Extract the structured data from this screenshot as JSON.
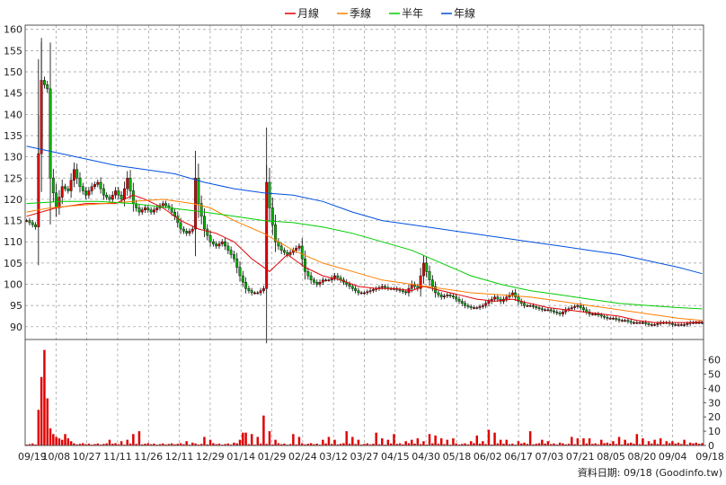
{
  "chart_data": {
    "type": "candlestick",
    "legend": {
      "placement": "top-center",
      "items": [
        {
          "label": "月線",
          "color": "#e00000"
        },
        {
          "label": "季線",
          "color": "#ff7f00"
        },
        {
          "label": "半年",
          "color": "#00cc00"
        },
        {
          "label": "年線",
          "color": "#0050e0"
        }
      ]
    },
    "price_axis": {
      "min": 87,
      "max": 161,
      "ticks": [
        90,
        95,
        100,
        105,
        110,
        115,
        120,
        125,
        130,
        135,
        140,
        145,
        150,
        155,
        160
      ]
    },
    "volume_axis": {
      "min": 0,
      "max": 68,
      "ticks": [
        0,
        10,
        20,
        30,
        40,
        50,
        60
      ]
    },
    "x_ticks": [
      "09/19",
      "10/08",
      "10/27",
      "11/11",
      "11/26",
      "12/11",
      "12/29",
      "01/14",
      "01/29",
      "02/24",
      "03/12",
      "03/27",
      "04/15",
      "04/30",
      "05/18",
      "06/02",
      "06/17",
      "07/03",
      "07/21",
      "08/05",
      "08/20",
      "09/04",
      "09/18"
    ],
    "footer": "資料日期: 09/18  (Goodinfo.tw)",
    "colors": {
      "up": "#e00000",
      "down": "#00b000",
      "volume": "#e00000",
      "grid": "#999999"
    },
    "price_anchors": [
      [
        0,
        115
      ],
      [
        3,
        113.5
      ],
      [
        5,
        148
      ],
      [
        7,
        146
      ],
      [
        8,
        125
      ],
      [
        10,
        118
      ],
      [
        12,
        123
      ],
      [
        14,
        122
      ],
      [
        16,
        127
      ],
      [
        18,
        123
      ],
      [
        20,
        121
      ],
      [
        22,
        123
      ],
      [
        24,
        124
      ],
      [
        26,
        121
      ],
      [
        28,
        120
      ],
      [
        30,
        122
      ],
      [
        32,
        120
      ],
      [
        34,
        125
      ],
      [
        36,
        119
      ],
      [
        38,
        117
      ],
      [
        40,
        118
      ],
      [
        42,
        117
      ],
      [
        44,
        118
      ],
      [
        46,
        119
      ],
      [
        48,
        118
      ],
      [
        50,
        116
      ],
      [
        52,
        113
      ],
      [
        54,
        112
      ],
      [
        56,
        113
      ],
      [
        57,
        125
      ],
      [
        58,
        119
      ],
      [
        60,
        113
      ],
      [
        62,
        110
      ],
      [
        64,
        109
      ],
      [
        66,
        110
      ],
      [
        68,
        108
      ],
      [
        70,
        106
      ],
      [
        72,
        102
      ],
      [
        74,
        99
      ],
      [
        76,
        98
      ],
      [
        78,
        98
      ],
      [
        80,
        99
      ],
      [
        81,
        124
      ],
      [
        82,
        118
      ],
      [
        84,
        110
      ],
      [
        86,
        108
      ],
      [
        88,
        107
      ],
      [
        90,
        108
      ],
      [
        92,
        109
      ],
      [
        94,
        103
      ],
      [
        96,
        101
      ],
      [
        98,
        100
      ],
      [
        100,
        101
      ],
      [
        102,
        101
      ],
      [
        104,
        102
      ],
      [
        106,
        101
      ],
      [
        108,
        100
      ],
      [
        110,
        99
      ],
      [
        112,
        98
      ],
      [
        114,
        98
      ],
      [
        116,
        98.5
      ],
      [
        118,
        99
      ],
      [
        120,
        99.5
      ],
      [
        122,
        99
      ],
      [
        124,
        99
      ],
      [
        126,
        98.5
      ],
      [
        128,
        98
      ],
      [
        130,
        100
      ],
      [
        132,
        99
      ],
      [
        134,
        105
      ],
      [
        136,
        101
      ],
      [
        138,
        98
      ],
      [
        140,
        97
      ],
      [
        142,
        97.5
      ],
      [
        144,
        97
      ],
      [
        146,
        96
      ],
      [
        148,
        95
      ],
      [
        150,
        94.5
      ],
      [
        152,
        94.5
      ],
      [
        154,
        95
      ],
      [
        156,
        96
      ],
      [
        158,
        97
      ],
      [
        160,
        96
      ],
      [
        162,
        97
      ],
      [
        164,
        98
      ],
      [
        166,
        96
      ],
      [
        168,
        95
      ],
      [
        170,
        95
      ],
      [
        172,
        94.5
      ],
      [
        174,
        94
      ],
      [
        176,
        94
      ],
      [
        178,
        93.5
      ],
      [
        180,
        93
      ],
      [
        182,
        94
      ],
      [
        184,
        94.5
      ],
      [
        186,
        95
      ],
      [
        188,
        94
      ],
      [
        190,
        93
      ],
      [
        192,
        93
      ],
      [
        194,
        92.5
      ],
      [
        196,
        92
      ],
      [
        198,
        92
      ],
      [
        200,
        91.5
      ],
      [
        202,
        91.5
      ],
      [
        204,
        91
      ],
      [
        206,
        91
      ],
      [
        208,
        91
      ],
      [
        210,
        90.5
      ],
      [
        212,
        90.5
      ],
      [
        214,
        91
      ],
      [
        216,
        91
      ],
      [
        218,
        90.5
      ],
      [
        220,
        90.5
      ],
      [
        222,
        90.5
      ],
      [
        224,
        91
      ],
      [
        226,
        91
      ],
      [
        228,
        91
      ]
    ],
    "ma_monthly": [
      [
        0,
        116
      ],
      [
        10,
        118
      ],
      [
        20,
        119
      ],
      [
        30,
        119
      ],
      [
        36,
        121
      ],
      [
        40,
        120
      ],
      [
        46,
        118
      ],
      [
        52,
        115
      ],
      [
        58,
        113
      ],
      [
        64,
        112
      ],
      [
        70,
        110
      ],
      [
        76,
        106
      ],
      [
        82,
        103
      ],
      [
        88,
        107
      ],
      [
        94,
        104
      ],
      [
        100,
        102
      ],
      [
        106,
        101
      ],
      [
        112,
        99.5
      ],
      [
        118,
        99
      ],
      [
        124,
        99
      ],
      [
        130,
        98.5
      ],
      [
        134,
        99.5
      ],
      [
        140,
        98.5
      ],
      [
        146,
        97.5
      ],
      [
        152,
        96.5
      ],
      [
        158,
        96
      ],
      [
        164,
        96.5
      ],
      [
        170,
        95.5
      ],
      [
        176,
        94.5
      ],
      [
        182,
        94
      ],
      [
        188,
        93.5
      ],
      [
        194,
        93
      ],
      [
        200,
        92.5
      ],
      [
        206,
        91.5
      ],
      [
        212,
        91
      ],
      [
        218,
        91
      ],
      [
        224,
        91
      ],
      [
        228,
        91.2
      ]
    ],
    "ma_quarterly": [
      [
        0,
        117
      ],
      [
        8,
        118
      ],
      [
        16,
        118.5
      ],
      [
        26,
        119
      ],
      [
        36,
        119.5
      ],
      [
        46,
        120
      ],
      [
        56,
        119
      ],
      [
        62,
        118
      ],
      [
        70,
        115
      ],
      [
        80,
        112
      ],
      [
        90,
        108
      ],
      [
        100,
        105
      ],
      [
        110,
        103
      ],
      [
        120,
        101
      ],
      [
        130,
        100
      ],
      [
        140,
        99
      ],
      [
        150,
        98
      ],
      [
        160,
        97.5
      ],
      [
        170,
        97
      ],
      [
        180,
        96
      ],
      [
        190,
        95
      ],
      [
        200,
        94
      ],
      [
        210,
        93
      ],
      [
        220,
        92
      ],
      [
        228,
        91.5
      ]
    ],
    "ma_halfyear": [
      [
        0,
        119
      ],
      [
        12,
        119.5
      ],
      [
        24,
        119.5
      ],
      [
        36,
        119
      ],
      [
        48,
        118
      ],
      [
        60,
        117
      ],
      [
        70,
        116
      ],
      [
        80,
        115
      ],
      [
        90,
        114.5
      ],
      [
        100,
        113.5
      ],
      [
        110,
        112
      ],
      [
        120,
        110
      ],
      [
        130,
        108
      ],
      [
        140,
        105
      ],
      [
        150,
        102
      ],
      [
        160,
        100
      ],
      [
        170,
        98.5
      ],
      [
        180,
        97.5
      ],
      [
        190,
        96.5
      ],
      [
        200,
        95.5
      ],
      [
        210,
        95
      ],
      [
        220,
        94.5
      ],
      [
        228,
        94.2
      ]
    ],
    "ma_yearly": [
      [
        0,
        132.5
      ],
      [
        10,
        131
      ],
      [
        20,
        129.5
      ],
      [
        30,
        128
      ],
      [
        40,
        127
      ],
      [
        50,
        126
      ],
      [
        60,
        124
      ],
      [
        70,
        122.5
      ],
      [
        80,
        121.5
      ],
      [
        90,
        121
      ],
      [
        100,
        119.5
      ],
      [
        110,
        117
      ],
      [
        120,
        115
      ],
      [
        130,
        114
      ],
      [
        140,
        113
      ],
      [
        150,
        112
      ],
      [
        160,
        111
      ],
      [
        170,
        110
      ],
      [
        180,
        109
      ],
      [
        190,
        108
      ],
      [
        200,
        107
      ],
      [
        210,
        105.5
      ],
      [
        220,
        104
      ],
      [
        228,
        102.5
      ]
    ],
    "volume_spikes": [
      [
        4,
        25
      ],
      [
        5,
        48
      ],
      [
        6,
        67
      ],
      [
        7,
        33
      ],
      [
        8,
        12
      ],
      [
        9,
        8
      ],
      [
        10,
        6
      ],
      [
        11,
        5
      ],
      [
        12,
        4
      ],
      [
        13,
        8
      ],
      [
        14,
        5
      ],
      [
        15,
        3
      ],
      [
        28,
        4
      ],
      [
        32,
        3
      ],
      [
        34,
        4
      ],
      [
        36,
        8
      ],
      [
        38,
        10
      ],
      [
        54,
        3
      ],
      [
        56,
        2
      ],
      [
        60,
        6
      ],
      [
        62,
        4
      ],
      [
        70,
        2
      ],
      [
        72,
        4
      ],
      [
        73,
        9
      ],
      [
        74,
        9
      ],
      [
        76,
        8
      ],
      [
        78,
        6
      ],
      [
        80,
        21
      ],
      [
        82,
        10
      ],
      [
        84,
        4
      ],
      [
        90,
        8
      ],
      [
        92,
        6
      ],
      [
        100,
        4
      ],
      [
        102,
        6
      ],
      [
        104,
        4
      ],
      [
        108,
        10
      ],
      [
        110,
        6
      ],
      [
        112,
        4
      ],
      [
        118,
        9
      ],
      [
        120,
        5
      ],
      [
        122,
        4
      ],
      [
        124,
        8
      ],
      [
        128,
        3
      ],
      [
        130,
        4
      ],
      [
        132,
        5
      ],
      [
        134,
        3
      ],
      [
        136,
        8
      ],
      [
        138,
        7
      ],
      [
        140,
        5
      ],
      [
        142,
        4
      ],
      [
        144,
        5
      ],
      [
        150,
        3
      ],
      [
        152,
        7
      ],
      [
        154,
        3
      ],
      [
        156,
        11
      ],
      [
        158,
        9
      ],
      [
        160,
        4
      ],
      [
        162,
        4
      ],
      [
        166,
        3
      ],
      [
        168,
        2
      ],
      [
        170,
        10
      ],
      [
        174,
        4
      ],
      [
        176,
        3
      ],
      [
        180,
        2
      ],
      [
        184,
        6
      ],
      [
        186,
        5
      ],
      [
        188,
        5
      ],
      [
        190,
        5
      ],
      [
        194,
        4
      ],
      [
        196,
        2
      ],
      [
        198,
        3
      ],
      [
        200,
        6
      ],
      [
        202,
        4
      ],
      [
        204,
        2
      ],
      [
        206,
        8
      ],
      [
        208,
        5
      ],
      [
        210,
        3
      ],
      [
        212,
        4
      ],
      [
        214,
        5
      ],
      [
        216,
        3
      ],
      [
        218,
        3
      ],
      [
        220,
        2
      ],
      [
        222,
        4
      ],
      [
        224,
        2
      ],
      [
        226,
        2
      ]
    ]
  }
}
